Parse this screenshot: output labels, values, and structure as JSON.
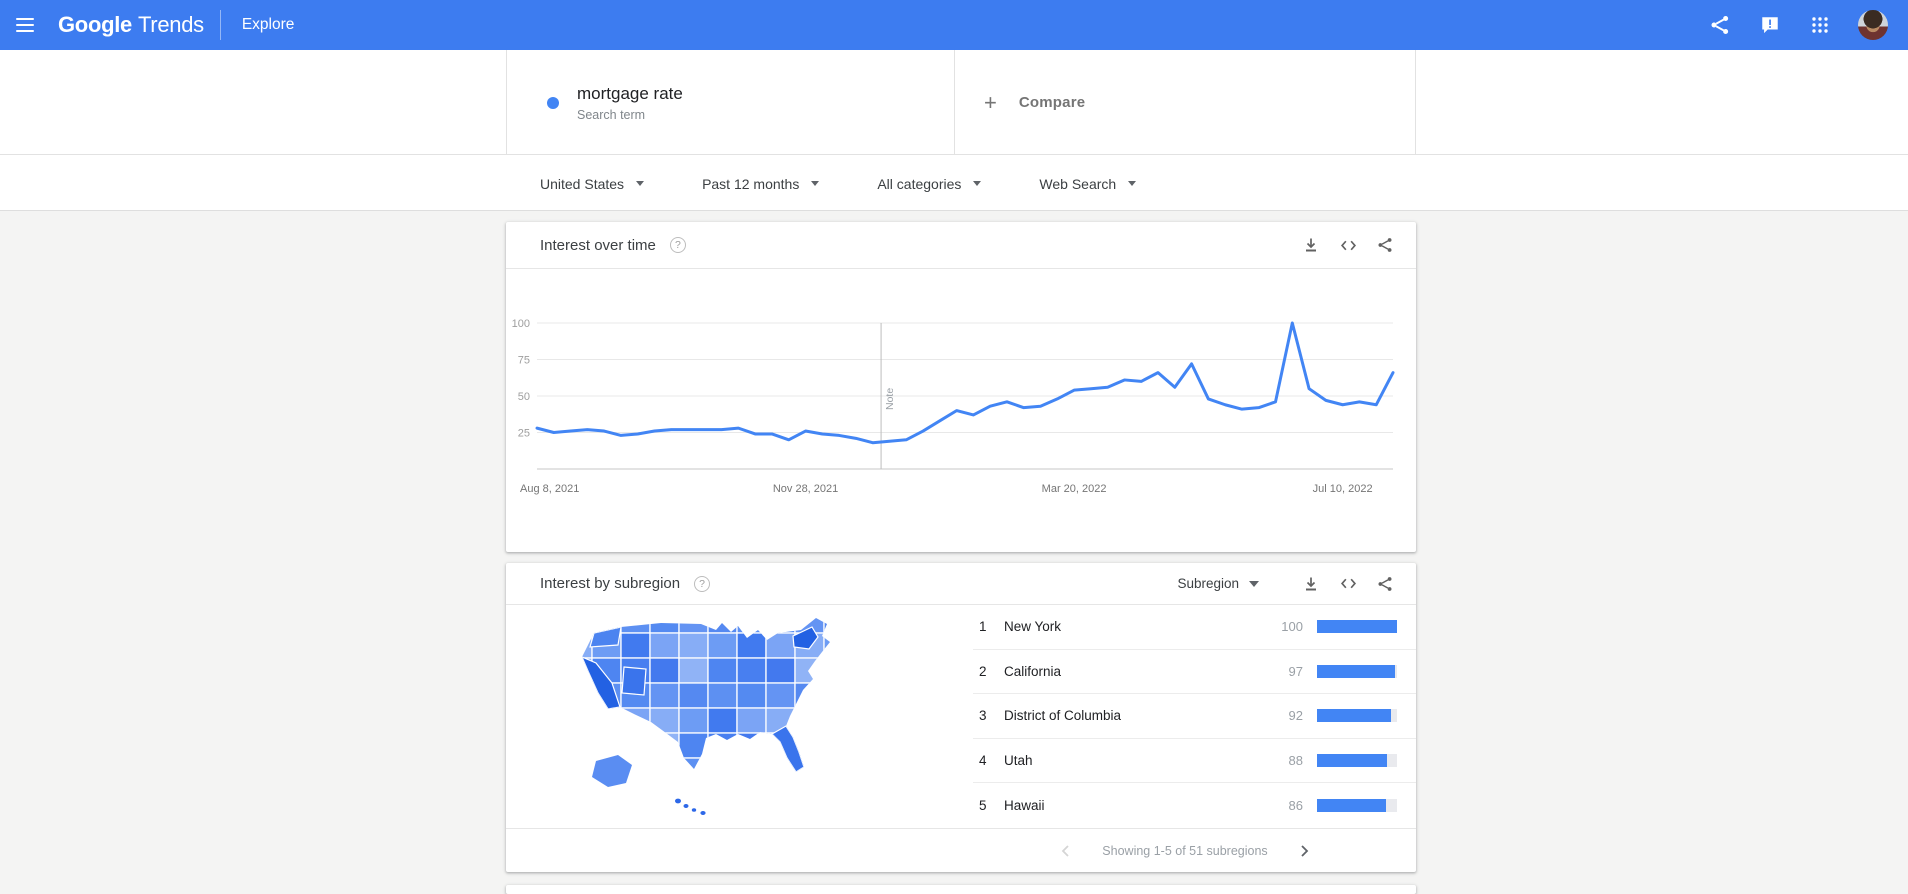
{
  "colors": {
    "header_bg": "#3d7cf0",
    "accent_blue": "#4285f4",
    "line": "#4285f4",
    "bar_fill": "#4285f4",
    "bar_track": "#e9eaee",
    "page_bg": "#f4f4f3",
    "map_dark": "#2361e3",
    "map_medium_dark": "#3a74ec",
    "map_palette": [
      "#6494f3",
      "#4e85f1",
      "#7ba4f5",
      "#5589f1",
      "#487ff0",
      "#87adf6",
      "#5d90f2",
      "#4379ee",
      "#6d9cf4",
      "#548af1",
      "#90b3f6",
      "#417aef"
    ]
  },
  "header": {
    "product": "Google",
    "suffix": "Trends",
    "page": "Explore"
  },
  "term_card": {
    "term": "mortgage rate",
    "term_type": "Search term",
    "plus_glyph": "+",
    "compare_label": "Compare"
  },
  "filters": [
    {
      "label": "United States"
    },
    {
      "label": "Past 12 months"
    },
    {
      "label": "All categories"
    },
    {
      "label": "Web Search"
    }
  ],
  "interest_over_time": {
    "title": "Interest over time",
    "help_glyph": "?"
  },
  "interest_by_subregion": {
    "title": "Interest by subregion",
    "help_glyph": "?",
    "dropdown_label": "Subregion",
    "bar_max": 100,
    "rows": [
      {
        "rank": "1",
        "name": "New York",
        "value": 100
      },
      {
        "rank": "2",
        "name": "California",
        "value": 97
      },
      {
        "rank": "3",
        "name": "District of Columbia",
        "value": 92
      },
      {
        "rank": "4",
        "name": "Utah",
        "value": 88
      },
      {
        "rank": "5",
        "name": "Hawaii",
        "value": 86
      }
    ],
    "pagination_text": "Showing 1-5 of 51 subregions"
  },
  "chart_data": [
    {
      "type": "line",
      "title": "Interest over time",
      "series": [
        {
          "name": "mortgage rate",
          "values": [
            28,
            25,
            26,
            27,
            26,
            23,
            24,
            26,
            27,
            27,
            27,
            27,
            28,
            24,
            24,
            20,
            26,
            24,
            23,
            21,
            18,
            19,
            20,
            26,
            33,
            40,
            37,
            43,
            46,
            42,
            43,
            48,
            54,
            55,
            56,
            61,
            60,
            66,
            56,
            72,
            48,
            44,
            41,
            42,
            46,
            100,
            55,
            47,
            44,
            46,
            44,
            66
          ]
        }
      ],
      "x_interval": "weekly",
      "x_tick_labels": [
        "Aug 8, 2021",
        "Nov 28, 2021",
        "Mar 20, 2022",
        "Jul 10, 2022"
      ],
      "x_tick_indices": [
        0,
        16,
        32,
        48
      ],
      "ylim": [
        0,
        100
      ],
      "y_ticks": [
        25,
        50,
        75,
        100
      ],
      "grid": true,
      "legend": "none",
      "note_marker_index": 20.5,
      "note_label": "Note",
      "line_color": "#4285f4"
    },
    {
      "type": "table",
      "title": "Interest by subregion",
      "categories": [
        "New York",
        "California",
        "District of Columbia",
        "Utah",
        "Hawaii"
      ],
      "values": [
        100,
        97,
        92,
        88,
        86
      ]
    }
  ]
}
